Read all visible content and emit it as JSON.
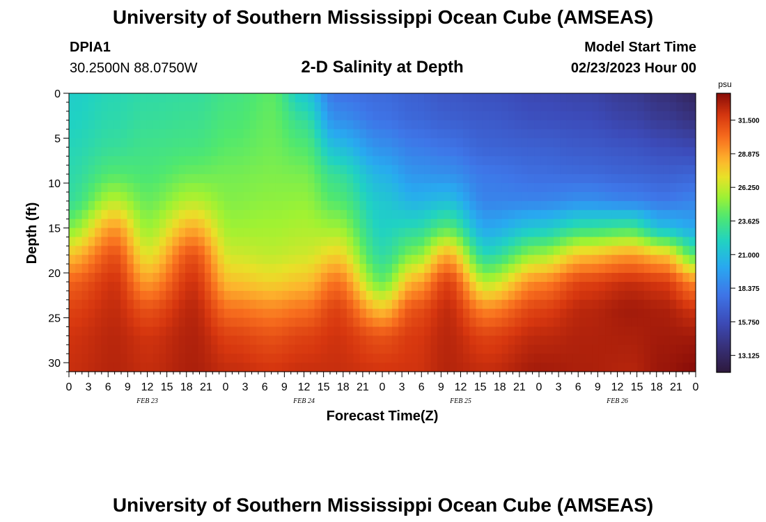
{
  "header": {
    "title": "University of Southern Mississippi Ocean Cube (AMSEAS)",
    "station_id": "DPIA1",
    "station_coords": "30.2500N  88.0750W",
    "plot_title": "2-D Salinity at Depth",
    "model_start_label": "Model Start Time",
    "model_start_value": "02/23/2023 Hour 00"
  },
  "footer": {
    "title": "University of Southern Mississippi Ocean Cube (AMSEAS)"
  },
  "chart_data": {
    "type": "heatmap",
    "title": "2-D Salinity at Depth",
    "xlabel": "Forecast Time(Z)",
    "ylabel": "Depth (ft)",
    "x_hours_range": [
      0,
      96
    ],
    "x_tick_step_hours": 3,
    "x_tick_labels": [
      "0",
      "3",
      "6",
      "9",
      "12",
      "15",
      "18",
      "21",
      "0",
      "3",
      "6",
      "9",
      "12",
      "15",
      "18",
      "21",
      "0",
      "3",
      "6",
      "9",
      "12",
      "15",
      "18",
      "21",
      "0",
      "3",
      "6",
      "9",
      "12",
      "15",
      "18",
      "21",
      "0"
    ],
    "day_labels": [
      {
        "label": "FEB 23",
        "hour": 12
      },
      {
        "label": "FEB 24",
        "hour": 36
      },
      {
        "label": "FEB 25",
        "hour": 60
      },
      {
        "label": "FEB 26",
        "hour": 84
      }
    ],
    "y_range": [
      0,
      31
    ],
    "y_tick_labels": [
      "0",
      "5",
      "10",
      "15",
      "20",
      "25",
      "30"
    ],
    "y_tick_values": [
      0,
      5,
      10,
      15,
      20,
      25,
      30
    ],
    "colorbar": {
      "unit": "psu",
      "min": 11.8,
      "max": 33.6,
      "tick_labels": [
        "31.500",
        "28.875",
        "26.250",
        "23.625",
        "21.000",
        "18.375",
        "15.750",
        "13.125"
      ],
      "tick_values": [
        31.5,
        28.875,
        26.25,
        23.625,
        21.0,
        18.375,
        15.75,
        13.125
      ]
    },
    "profiles": {
      "depth_ft": [
        0,
        3,
        6,
        9,
        12,
        15,
        18,
        21,
        24,
        27,
        31
      ],
      "columns": [
        {
          "hour": 0,
          "salinity": [
            21.8,
            22.0,
            22.3,
            22.6,
            23.0,
            25.0,
            28.0,
            30.5,
            31.5,
            32.0,
            32.2
          ]
        },
        {
          "hour": 7,
          "salinity": [
            22.4,
            22.6,
            23.0,
            24.0,
            26.0,
            29.0,
            31.0,
            32.0,
            32.3,
            32.5,
            32.6
          ]
        },
        {
          "hour": 12,
          "salinity": [
            22.7,
            23.0,
            23.4,
            23.8,
            24.5,
            25.5,
            27.0,
            29.0,
            31.0,
            32.0,
            32.3
          ]
        },
        {
          "hour": 19,
          "salinity": [
            22.9,
            23.2,
            23.6,
            24.5,
            26.0,
            28.5,
            31.0,
            32.0,
            32.5,
            32.7,
            32.8
          ]
        },
        {
          "hour": 25,
          "salinity": [
            23.5,
            23.8,
            24.2,
            24.7,
            25.0,
            25.5,
            26.5,
            28.0,
            30.0,
            31.5,
            32.3
          ]
        },
        {
          "hour": 31,
          "salinity": [
            24.2,
            24.4,
            24.6,
            24.9,
            25.2,
            25.6,
            26.2,
            27.5,
            29.5,
            31.0,
            32.0
          ]
        },
        {
          "hour": 36,
          "salinity": [
            21.5,
            23.0,
            24.0,
            24.8,
            25.3,
            25.8,
            26.5,
            28.0,
            30.0,
            31.5,
            32.2
          ]
        },
        {
          "hour": 41,
          "salinity": [
            17.8,
            19.0,
            21.0,
            23.0,
            24.0,
            25.5,
            27.5,
            30.0,
            31.5,
            32.0,
            32.2
          ]
        },
        {
          "hour": 48,
          "salinity": [
            17.3,
            17.8,
            19.0,
            20.5,
            21.5,
            22.0,
            22.8,
            24.5,
            28.0,
            31.0,
            32.0
          ]
        },
        {
          "hour": 53,
          "salinity": [
            16.8,
            17.2,
            18.2,
            19.2,
            20.5,
            22.5,
            25.0,
            28.5,
            31.0,
            31.8,
            32.0
          ]
        },
        {
          "hour": 58,
          "salinity": [
            16.3,
            16.8,
            17.8,
            19.0,
            21.0,
            24.0,
            28.5,
            31.5,
            32.3,
            32.5,
            32.6
          ]
        },
        {
          "hour": 64,
          "salinity": [
            16.0,
            16.5,
            17.0,
            18.0,
            18.5,
            20.0,
            22.5,
            26.0,
            29.5,
            31.5,
            32.3
          ]
        },
        {
          "hour": 72,
          "salinity": [
            15.5,
            16.0,
            16.8,
            17.5,
            18.5,
            21.5,
            25.5,
            29.5,
            31.5,
            32.4,
            33.0
          ]
        },
        {
          "hour": 79,
          "salinity": [
            15.2,
            15.8,
            16.5,
            17.3,
            19.0,
            23.0,
            28.0,
            31.5,
            32.5,
            32.7,
            32.8
          ]
        },
        {
          "hour": 86,
          "salinity": [
            14.5,
            15.2,
            16.2,
            17.0,
            18.5,
            23.5,
            29.0,
            32.2,
            33.0,
            32.8,
            32.6
          ]
        },
        {
          "hour": 91,
          "salinity": [
            13.8,
            14.6,
            15.8,
            16.8,
            18.0,
            21.0,
            28.0,
            31.8,
            32.8,
            33.0,
            33.2
          ]
        },
        {
          "hour": 96,
          "salinity": [
            13.0,
            14.0,
            15.5,
            17.0,
            18.5,
            20.0,
            24.0,
            29.5,
            32.0,
            33.0,
            33.6
          ]
        }
      ]
    }
  }
}
